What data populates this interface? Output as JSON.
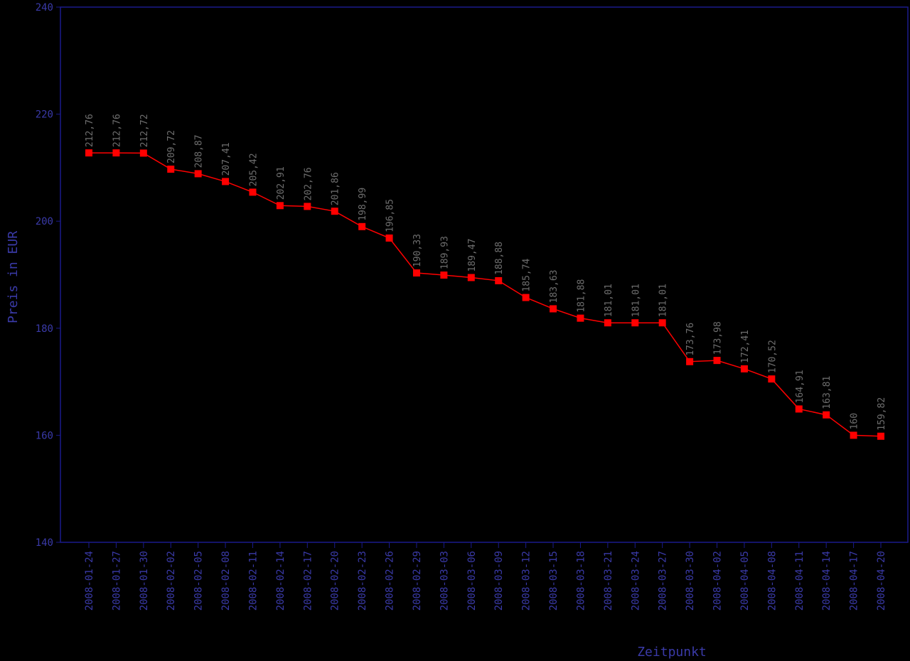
{
  "chart_data": {
    "type": "line",
    "x_label": "Zeitpunkt",
    "y_label": "Preis in EUR",
    "categories": [
      "2008-01-24",
      "2008-01-27",
      "2008-01-30",
      "2008-02-02",
      "2008-02-05",
      "2008-02-08",
      "2008-02-11",
      "2008-02-14",
      "2008-02-17",
      "2008-02-20",
      "2008-02-23",
      "2008-02-26",
      "2008-02-29",
      "2008-03-03",
      "2008-03-06",
      "2008-03-09",
      "2008-03-12",
      "2008-03-15",
      "2008-03-18",
      "2008-03-21",
      "2008-03-24",
      "2008-03-27",
      "2008-03-30",
      "2008-04-02",
      "2008-04-05",
      "2008-04-08",
      "2008-04-11",
      "2008-04-14",
      "2008-04-17",
      "2008-04-20"
    ],
    "series": [
      {
        "color": "#ff0000",
        "values": [
          212.76,
          212.76,
          212.72,
          209.72,
          208.87,
          207.41,
          205.42,
          202.91,
          202.76,
          201.86,
          198.99,
          196.85,
          190.33,
          189.93,
          189.47,
          188.88,
          185.74,
          183.63,
          181.88,
          181.01,
          181.01,
          181.01,
          173.76,
          173.98,
          172.41,
          170.52,
          164.91,
          163.81,
          160,
          159.82
        ],
        "value_labels": [
          "212,76",
          "212,76",
          "212,72",
          "209,72",
          "208,87",
          "207,41",
          "205,42",
          "202,91",
          "202,76",
          "201,86",
          "198,99",
          "196,85",
          "190,33",
          "189,93",
          "189,47",
          "188,88",
          "185,74",
          "183,63",
          "181,88",
          "181,01",
          "181,01",
          "181,01",
          "173,76",
          "173,98",
          "172,41",
          "170,52",
          "164,91",
          "163,81",
          "160",
          "159,82"
        ]
      }
    ],
    "ylim": [
      140,
      240
    ],
    "yticks": [
      140,
      160,
      180,
      200,
      220,
      240
    ],
    "grid": false
  }
}
